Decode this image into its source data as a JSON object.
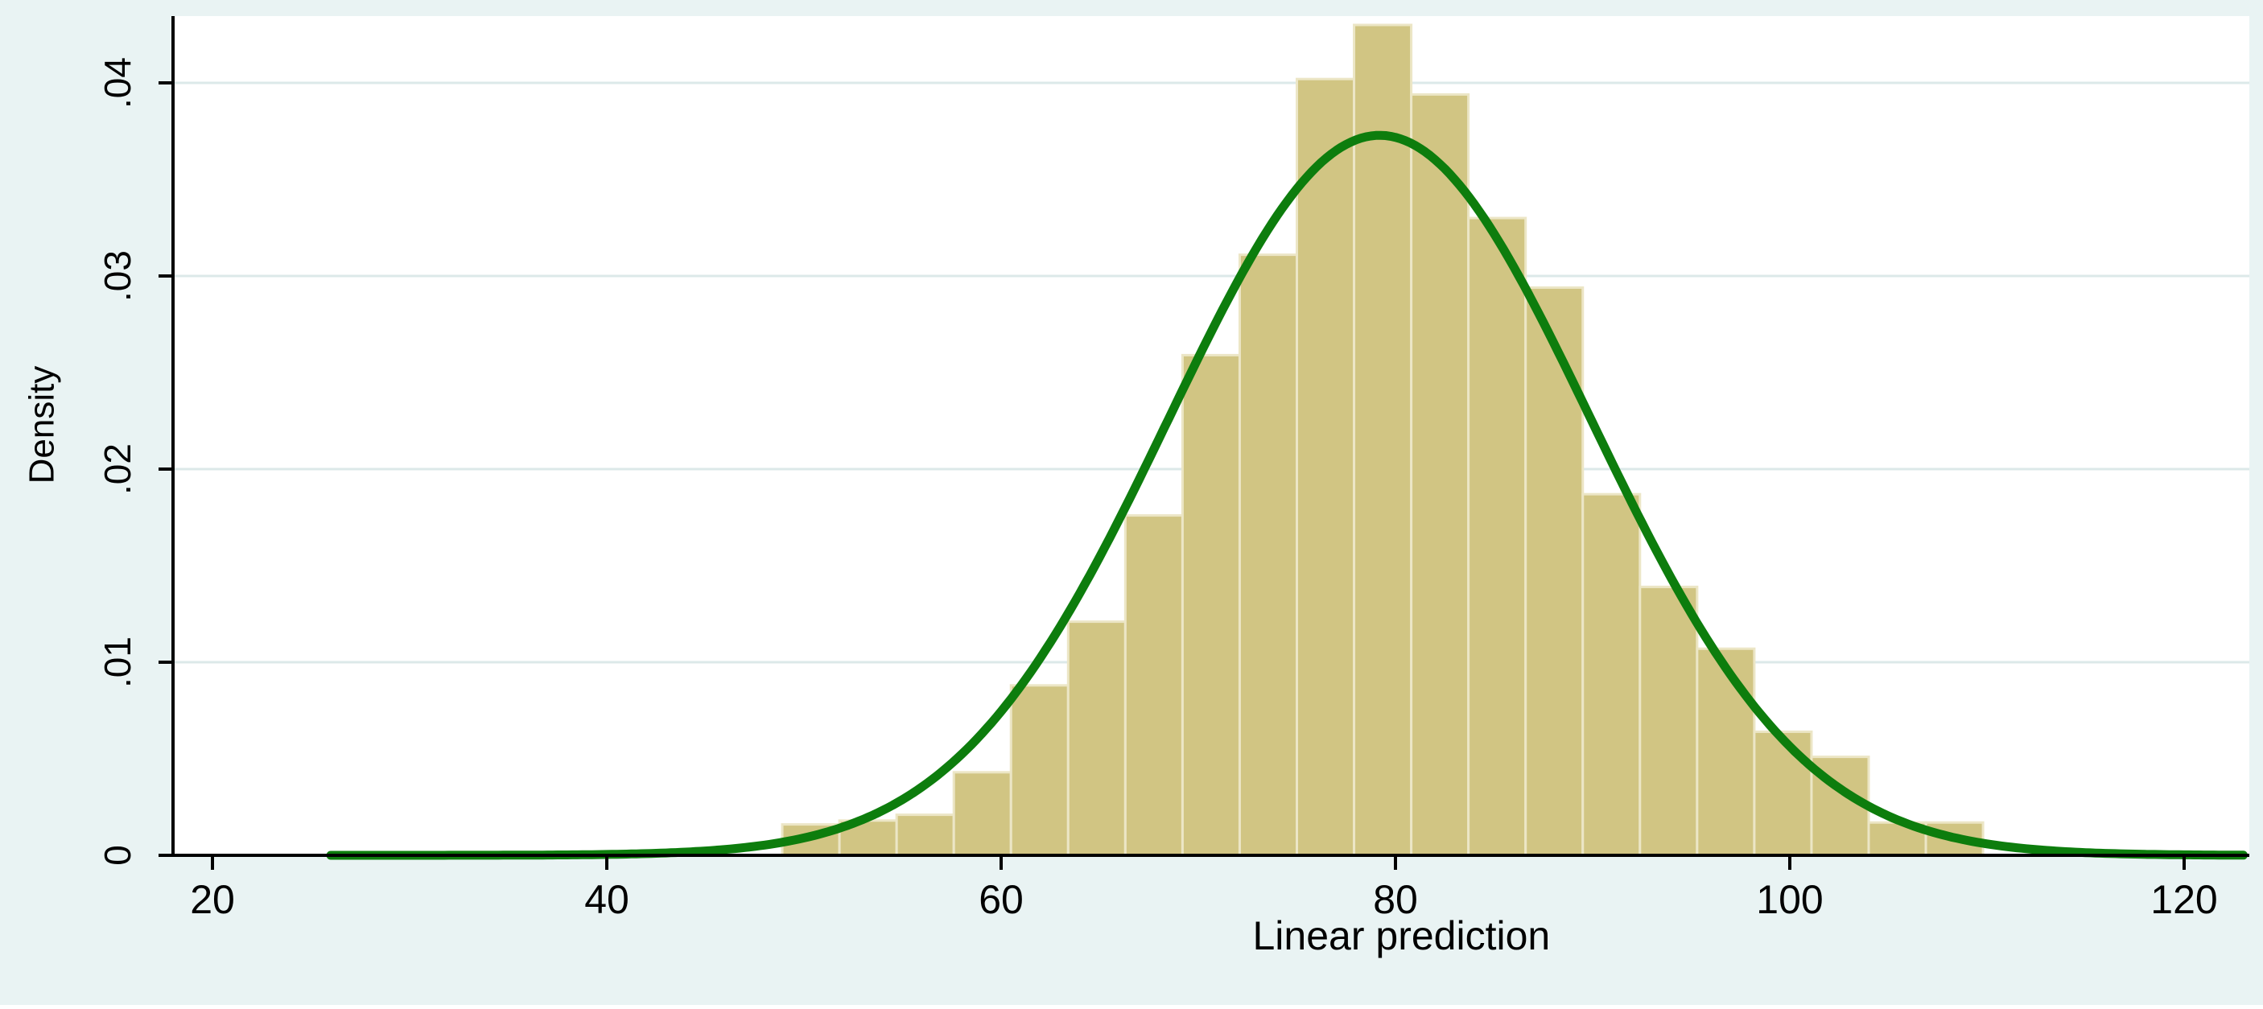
{
  "chart_data": {
    "type": "bar",
    "title": "",
    "xlabel": "Linear prediction",
    "ylabel": "Density",
    "xlim": [
      18,
      123
    ],
    "ylim": [
      0,
      0.043
    ],
    "x_ticks": [
      20,
      40,
      60,
      80,
      100,
      120
    ],
    "x_tick_labels": [
      "20",
      "40",
      "60",
      "80",
      "100",
      "120"
    ],
    "y_ticks": [
      0,
      0.01,
      0.02,
      0.03,
      0.04
    ],
    "y_tick_labels": [
      "0",
      ".01",
      ".02",
      ".03",
      ".04"
    ],
    "grid": true,
    "legend": "none",
    "bin_width": 2.9,
    "bins": [
      {
        "start": 48.9,
        "density": 0.0016
      },
      {
        "start": 51.8,
        "density": 0.0018
      },
      {
        "start": 54.7,
        "density": 0.0021
      },
      {
        "start": 57.6,
        "density": 0.0043
      },
      {
        "start": 60.5,
        "density": 0.0088
      },
      {
        "start": 63.4,
        "density": 0.0121
      },
      {
        "start": 66.3,
        "density": 0.0176
      },
      {
        "start": 69.2,
        "density": 0.0259
      },
      {
        "start": 72.1,
        "density": 0.0311
      },
      {
        "start": 75.0,
        "density": 0.0402
      },
      {
        "start": 77.9,
        "density": 0.043
      },
      {
        "start": 80.8,
        "density": 0.0394
      },
      {
        "start": 83.7,
        "density": 0.033
      },
      {
        "start": 86.6,
        "density": 0.0294
      },
      {
        "start": 89.5,
        "density": 0.0187
      },
      {
        "start": 92.4,
        "density": 0.0139
      },
      {
        "start": 95.3,
        "density": 0.0107
      },
      {
        "start": 98.2,
        "density": 0.0064
      },
      {
        "start": 101.1,
        "density": 0.0051
      },
      {
        "start": 104.0,
        "density": 0.0017
      },
      {
        "start": 106.9,
        "density": 0.0017
      }
    ],
    "normal_curve": {
      "mean": 79.2,
      "sd": 10.7,
      "x_range": [
        26,
        123
      ]
    },
    "colors": {
      "bar_fill": "#d1c583",
      "bar_stroke": "#ece6c6",
      "curve": "#0d7d0d",
      "outer_background": "#e9f3f3",
      "plot_background": "#ffffff",
      "grid": "#dce9e9",
      "axis": "#000000"
    }
  }
}
